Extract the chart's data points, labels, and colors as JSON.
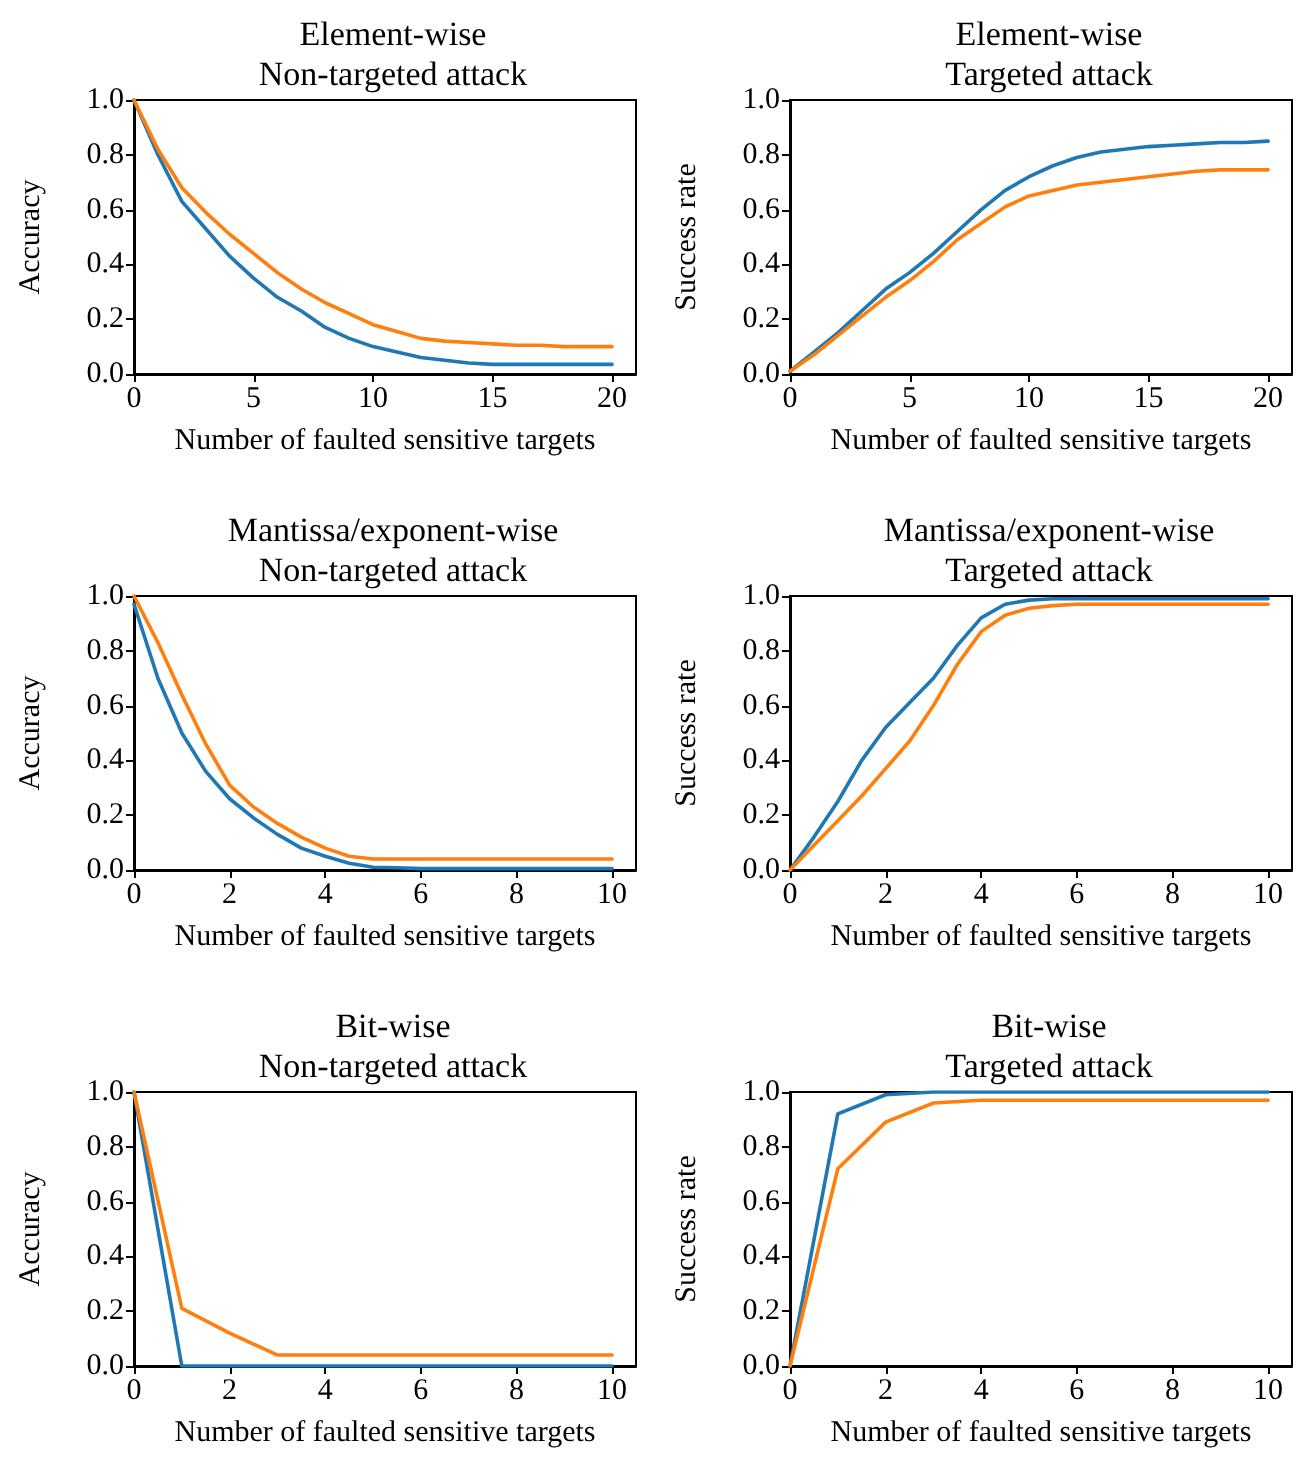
{
  "chart_data": [
    {
      "type": "line",
      "title": "Element-wise\nNon-targeted attack",
      "xlabel": "Number of faulted sensitive targets",
      "ylabel": "Accuracy",
      "xlim": [
        0,
        21
      ],
      "xticks": [
        0,
        5,
        10,
        15,
        20
      ],
      "ylim": [
        0,
        1
      ],
      "yticks": [
        {
          "value": 0,
          "label": "0.0"
        },
        {
          "value": 0.2,
          "label": "0.2"
        },
        {
          "value": 0.4,
          "label": "0.4"
        },
        {
          "value": 0.6,
          "label": "0.6"
        },
        {
          "value": 0.8,
          "label": "0.8"
        },
        {
          "value": 1,
          "label": "1.0"
        }
      ],
      "grid": false,
      "marker": "none",
      "line_style": "solid",
      "x": [
        0,
        1,
        2,
        3,
        4,
        5,
        6,
        7,
        8,
        9,
        10,
        11,
        12,
        13,
        14,
        15,
        16,
        17,
        18,
        19,
        20
      ],
      "series": [
        {
          "color": "#1f77b4",
          "values": [
            1.0,
            0.8,
            0.63,
            0.53,
            0.43,
            0.35,
            0.28,
            0.23,
            0.17,
            0.13,
            0.1,
            0.08,
            0.06,
            0.05,
            0.04,
            0.035,
            0.035,
            0.035,
            0.035,
            0.035,
            0.035
          ]
        },
        {
          "color": "#ff7f0e",
          "values": [
            1.0,
            0.82,
            0.68,
            0.59,
            0.51,
            0.44,
            0.37,
            0.31,
            0.26,
            0.22,
            0.18,
            0.155,
            0.13,
            0.12,
            0.115,
            0.11,
            0.105,
            0.105,
            0.1,
            0.1,
            0.1
          ]
        }
      ]
    },
    {
      "type": "line",
      "title": "Element-wise\nTargeted attack",
      "xlabel": "Number of faulted sensitive targets",
      "ylabel": "Success rate",
      "xlim": [
        0,
        21
      ],
      "xticks": [
        0,
        5,
        10,
        15,
        20
      ],
      "ylim": [
        0,
        1
      ],
      "yticks": [
        {
          "value": 0,
          "label": "0.0"
        },
        {
          "value": 0.2,
          "label": "0.2"
        },
        {
          "value": 0.4,
          "label": "0.4"
        },
        {
          "value": 0.6,
          "label": "0.6"
        },
        {
          "value": 0.8,
          "label": "0.8"
        },
        {
          "value": 1,
          "label": "1.0"
        }
      ],
      "grid": false,
      "marker": "none",
      "line_style": "solid",
      "x": [
        0,
        1,
        2,
        3,
        4,
        5,
        6,
        7,
        8,
        9,
        10,
        11,
        12,
        13,
        14,
        15,
        16,
        17,
        18,
        19,
        20
      ],
      "series": [
        {
          "color": "#1f77b4",
          "values": [
            0.01,
            0.08,
            0.15,
            0.23,
            0.31,
            0.37,
            0.44,
            0.52,
            0.6,
            0.67,
            0.72,
            0.76,
            0.79,
            0.81,
            0.82,
            0.83,
            0.835,
            0.84,
            0.845,
            0.845,
            0.85
          ]
        },
        {
          "color": "#ff7f0e",
          "values": [
            0.01,
            0.07,
            0.14,
            0.21,
            0.28,
            0.34,
            0.41,
            0.49,
            0.55,
            0.61,
            0.65,
            0.67,
            0.69,
            0.7,
            0.71,
            0.72,
            0.73,
            0.74,
            0.745,
            0.745,
            0.745
          ]
        }
      ]
    },
    {
      "type": "line",
      "title": "Mantissa/exponent-wise\nNon-targeted attack",
      "xlabel": "Number of faulted sensitive targets",
      "ylabel": "Accuracy",
      "xlim": [
        0,
        10.5
      ],
      "xticks": [
        0,
        2,
        4,
        6,
        8,
        10
      ],
      "ylim": [
        0,
        1
      ],
      "yticks": [
        {
          "value": 0,
          "label": "0.0"
        },
        {
          "value": 0.2,
          "label": "0.2"
        },
        {
          "value": 0.4,
          "label": "0.4"
        },
        {
          "value": 0.6,
          "label": "0.6"
        },
        {
          "value": 0.8,
          "label": "0.8"
        },
        {
          "value": 1,
          "label": "1.0"
        }
      ],
      "grid": false,
      "marker": "none",
      "line_style": "solid",
      "x": [
        0,
        0.5,
        1,
        1.5,
        2,
        2.5,
        3,
        3.5,
        4,
        4.5,
        5,
        5.5,
        6,
        7,
        8,
        9,
        10
      ],
      "series": [
        {
          "color": "#1f77b4",
          "values": [
            0.97,
            0.7,
            0.5,
            0.36,
            0.26,
            0.19,
            0.13,
            0.08,
            0.05,
            0.025,
            0.01,
            0.008,
            0.005,
            0.005,
            0.005,
            0.005,
            0.005
          ]
        },
        {
          "color": "#ff7f0e",
          "values": [
            1.0,
            0.83,
            0.64,
            0.46,
            0.31,
            0.23,
            0.17,
            0.12,
            0.08,
            0.05,
            0.04,
            0.04,
            0.04,
            0.04,
            0.04,
            0.04,
            0.04
          ]
        }
      ]
    },
    {
      "type": "line",
      "title": "Mantissa/exponent-wise\nTargeted attack",
      "xlabel": "Number of faulted sensitive targets",
      "ylabel": "Success rate",
      "xlim": [
        0,
        10.5
      ],
      "xticks": [
        0,
        2,
        4,
        6,
        8,
        10
      ],
      "ylim": [
        0,
        1
      ],
      "yticks": [
        {
          "value": 0,
          "label": "0.0"
        },
        {
          "value": 0.2,
          "label": "0.2"
        },
        {
          "value": 0.4,
          "label": "0.4"
        },
        {
          "value": 0.6,
          "label": "0.6"
        },
        {
          "value": 0.8,
          "label": "0.8"
        },
        {
          "value": 1,
          "label": "1.0"
        }
      ],
      "grid": false,
      "marker": "none",
      "line_style": "solid",
      "x": [
        0,
        0.5,
        1,
        1.5,
        2,
        2.5,
        3,
        3.5,
        4,
        4.5,
        5,
        5.5,
        6,
        7,
        8,
        9,
        10
      ],
      "series": [
        {
          "color": "#1f77b4",
          "values": [
            0,
            0.12,
            0.25,
            0.4,
            0.52,
            0.61,
            0.7,
            0.82,
            0.92,
            0.97,
            0.985,
            0.99,
            0.99,
            0.99,
            0.99,
            0.99,
            0.99
          ]
        },
        {
          "color": "#ff7f0e",
          "values": [
            0,
            0.09,
            0.18,
            0.27,
            0.37,
            0.47,
            0.6,
            0.75,
            0.87,
            0.93,
            0.955,
            0.965,
            0.97,
            0.97,
            0.97,
            0.97,
            0.97
          ]
        }
      ]
    },
    {
      "type": "line",
      "title": "Bit-wise\nNon-targeted attack",
      "xlabel": "Number of faulted sensitive targets",
      "ylabel": "Accuracy",
      "xlim": [
        0,
        10.5
      ],
      "xticks": [
        0,
        2,
        4,
        6,
        8,
        10
      ],
      "ylim": [
        0,
        1
      ],
      "yticks": [
        {
          "value": 0,
          "label": "0.0"
        },
        {
          "value": 0.2,
          "label": "0.2"
        },
        {
          "value": 0.4,
          "label": "0.4"
        },
        {
          "value": 0.6,
          "label": "0.6"
        },
        {
          "value": 0.8,
          "label": "0.8"
        },
        {
          "value": 1,
          "label": "1.0"
        }
      ],
      "grid": false,
      "marker": "none",
      "line_style": "solid",
      "x": [
        0,
        1,
        2,
        3,
        4,
        5,
        6,
        7,
        8,
        9,
        10
      ],
      "series": [
        {
          "color": "#1f77b4",
          "values": [
            1.0,
            0,
            0,
            0,
            0,
            0,
            0,
            0,
            0,
            0,
            0
          ]
        },
        {
          "color": "#ff7f0e",
          "values": [
            1.0,
            0.21,
            0.12,
            0.04,
            0.04,
            0.04,
            0.04,
            0.04,
            0.04,
            0.04,
            0.04
          ]
        }
      ]
    },
    {
      "type": "line",
      "title": "Bit-wise\nTargeted attack",
      "xlabel": "Number of faulted sensitive targets",
      "ylabel": "Success rate",
      "xlim": [
        0,
        10.5
      ],
      "xticks": [
        0,
        2,
        4,
        6,
        8,
        10
      ],
      "ylim": [
        0,
        1
      ],
      "yticks": [
        {
          "value": 0,
          "label": "0.0"
        },
        {
          "value": 0.2,
          "label": "0.2"
        },
        {
          "value": 0.4,
          "label": "0.4"
        },
        {
          "value": 0.6,
          "label": "0.6"
        },
        {
          "value": 0.8,
          "label": "0.8"
        },
        {
          "value": 1,
          "label": "1.0"
        }
      ],
      "grid": false,
      "marker": "none",
      "line_style": "solid",
      "x": [
        0,
        1,
        2,
        3,
        4,
        5,
        6,
        7,
        8,
        9,
        10
      ],
      "series": [
        {
          "color": "#1f77b4",
          "values": [
            0,
            0.92,
            0.99,
            1.0,
            1.0,
            1.0,
            1.0,
            1.0,
            1.0,
            1.0,
            1.0
          ]
        },
        {
          "color": "#ff7f0e",
          "values": [
            0,
            0.72,
            0.89,
            0.96,
            0.97,
            0.97,
            0.97,
            0.97,
            0.97,
            0.97,
            0.97
          ]
        }
      ]
    }
  ]
}
